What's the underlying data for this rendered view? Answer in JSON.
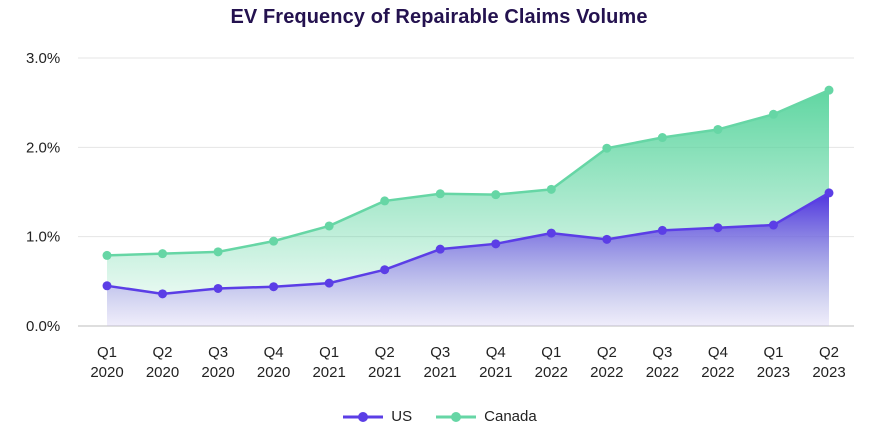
{
  "chart_data": {
    "type": "area",
    "title": "EV Frequency of Repairable Claims Volume",
    "xlabel": "",
    "ylabel": "",
    "categories": [
      [
        "Q1",
        "2020"
      ],
      [
        "Q2",
        "2020"
      ],
      [
        "Q3",
        "2020"
      ],
      [
        "Q4",
        "2020"
      ],
      [
        "Q1",
        "2021"
      ],
      [
        "Q2",
        "2021"
      ],
      [
        "Q3",
        "2021"
      ],
      [
        "Q4",
        "2021"
      ],
      [
        "Q1",
        "2022"
      ],
      [
        "Q2",
        "2022"
      ],
      [
        "Q3",
        "2022"
      ],
      [
        "Q4",
        "2022"
      ],
      [
        "Q1",
        "2023"
      ],
      [
        "Q2",
        "2023"
      ]
    ],
    "y_ticks": [
      "0.0%",
      "1.0%",
      "2.0%",
      "3.0%"
    ],
    "ylim": [
      0,
      3.0
    ],
    "y_unit": "%",
    "grid": true,
    "legend_position": "bottom",
    "series": [
      {
        "name": "US",
        "color": "#5b3ee6",
        "values": [
          0.45,
          0.36,
          0.42,
          0.44,
          0.48,
          0.63,
          0.86,
          0.92,
          1.04,
          0.97,
          1.07,
          1.1,
          1.13,
          1.49
        ]
      },
      {
        "name": "Canada",
        "color": "#66d6a5",
        "values": [
          0.79,
          0.81,
          0.83,
          0.95,
          1.12,
          1.4,
          1.48,
          1.47,
          1.53,
          1.99,
          2.11,
          2.2,
          2.37,
          2.64
        ]
      }
    ]
  }
}
